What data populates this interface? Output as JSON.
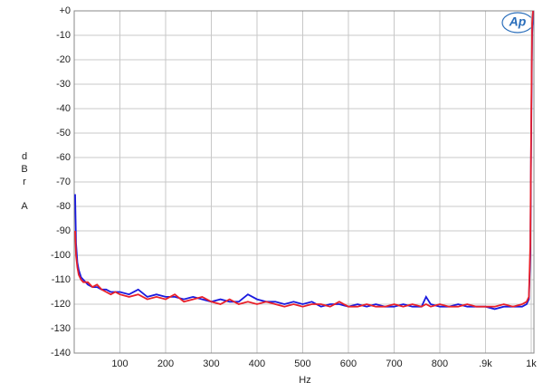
{
  "chart_data": {
    "type": "line",
    "logo": "Ap",
    "xlabel": "Hz",
    "ylabel": [
      "d",
      "B",
      "r",
      "A"
    ],
    "x": [
      2,
      4,
      7,
      10,
      15,
      20,
      30,
      40,
      50,
      60,
      70,
      80,
      90,
      100,
      120,
      140,
      160,
      180,
      200,
      220,
      240,
      260,
      280,
      300,
      320,
      340,
      360,
      380,
      400,
      420,
      440,
      460,
      480,
      500,
      520,
      540,
      560,
      580,
      600,
      620,
      640,
      660,
      680,
      700,
      720,
      740,
      760,
      770,
      780,
      800,
      820,
      840,
      860,
      880,
      900,
      920,
      940,
      960,
      980,
      990,
      995,
      998,
      1000,
      1002,
      1004
    ],
    "series": [
      {
        "color": "#1a1adf",
        "values": [
          -75,
          -95,
          -103,
          -106,
          -109,
          -110,
          -112,
          -113,
          -113,
          -114,
          -114,
          -115,
          -115,
          -115,
          -116,
          -114,
          -117,
          -116,
          -117,
          -117,
          -118,
          -117,
          -118,
          -119,
          -118,
          -119,
          -119,
          -116,
          -118,
          -119,
          -119,
          -120,
          -119,
          -120,
          -119,
          -121,
          -120,
          -120,
          -121,
          -120,
          -121,
          -120,
          -121,
          -121,
          -120,
          -121,
          -121,
          -117,
          -120,
          -121,
          -121,
          -120,
          -121,
          -121,
          -121,
          -122,
          -121,
          -121,
          -121,
          -120,
          -118,
          -100,
          -50,
          -10,
          0
        ]
      },
      {
        "color": "#e8202a",
        "values": [
          -90,
          -100,
          -105,
          -108,
          -110,
          -111,
          -111,
          -113,
          -112,
          -114,
          -115,
          -116,
          -115,
          -116,
          -117,
          -116,
          -118,
          -117,
          -118,
          -116,
          -119,
          -118,
          -117,
          -119,
          -120,
          -118,
          -120,
          -119,
          -120,
          -119,
          -120,
          -121,
          -120,
          -121,
          -120,
          -120,
          -121,
          -119,
          -121,
          -121,
          -120,
          -121,
          -121,
          -120,
          -121,
          -120,
          -121,
          -120,
          -121,
          -120,
          -121,
          -121,
          -120,
          -121,
          -121,
          -121,
          -120,
          -121,
          -120,
          -119,
          -117,
          -95,
          -45,
          -5,
          0
        ]
      }
    ],
    "xlim": [
      0,
      1006
    ],
    "xticks": [
      100,
      200,
      300,
      400,
      500,
      600,
      700,
      800,
      {
        "value": 900,
        "label": ".9k"
      },
      {
        "value": 1000,
        "label": "1k"
      }
    ],
    "ylim": [
      -140,
      0
    ],
    "yticks": [
      {
        "value": 0,
        "label": "+0"
      },
      -10,
      -20,
      -30,
      -40,
      -50,
      -60,
      -70,
      -80,
      -90,
      -100,
      -110,
      -120,
      -130,
      -140
    ],
    "grid": true
  }
}
